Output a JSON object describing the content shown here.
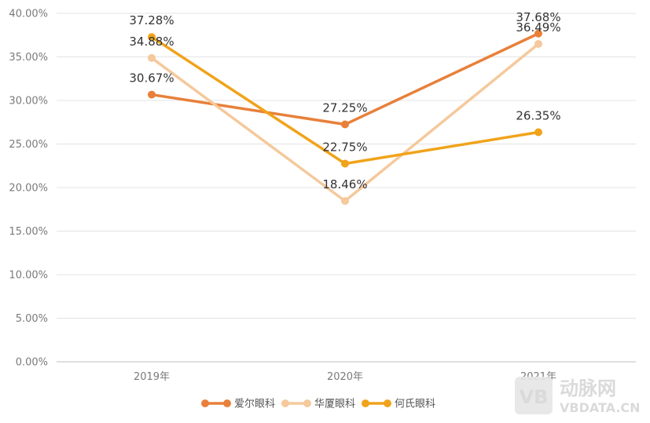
{
  "chart_data": {
    "type": "line",
    "title": "",
    "xlabel": "",
    "ylabel": "",
    "categories": [
      "2019年",
      "2020年",
      "2021年"
    ],
    "ylim": [
      0,
      40
    ],
    "y_ticks": [
      "0.00%",
      "5.00%",
      "10.00%",
      "15.00%",
      "20.00%",
      "25.00%",
      "30.00%",
      "35.00%",
      "40.00%"
    ],
    "grid": true,
    "legend_position": "bottom",
    "series": [
      {
        "name": "爱尔眼科",
        "color": "#E8803A",
        "values": [
          30.67,
          27.25,
          37.68
        ],
        "labels": [
          "30.67%",
          "27.25%",
          "37.68%"
        ]
      },
      {
        "name": "华厦眼科",
        "color": "#F5C99C",
        "values": [
          34.88,
          18.46,
          36.49
        ],
        "labels": [
          "34.88%",
          "18.46%",
          "36.49%"
        ]
      },
      {
        "name": "何氏眼科",
        "color": "#F0A31A",
        "values": [
          37.28,
          22.75,
          26.35
        ],
        "labels": [
          "37.28%",
          "22.75%",
          "26.35%"
        ]
      }
    ]
  },
  "watermark": {
    "logo_text": "VB",
    "brand": "动脉网",
    "domain": "VBDATA.CN"
  }
}
